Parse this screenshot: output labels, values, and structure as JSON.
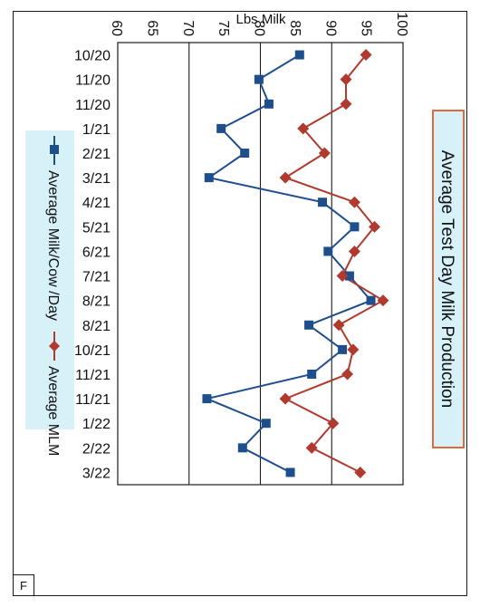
{
  "figure": {
    "panel_letter": "F"
  },
  "chart_data": {
    "type": "line",
    "title": "Average Test Day Milk Production",
    "ylabel": "Lbs Milk",
    "xlabel": "",
    "ylim": [
      60,
      100
    ],
    "y_ticks": [
      "60",
      "65",
      "70",
      "75",
      "80",
      "85",
      "90",
      "95",
      "100"
    ],
    "categories": [
      "10/20",
      "11/20",
      "11/20",
      "1/21",
      "2/21",
      "3/21",
      "4/21",
      "5/21",
      "6/21",
      "7/21",
      "8/21",
      "8/21",
      "10/21",
      "11/21",
      "11/21",
      "1/22",
      "2/22",
      "3/22"
    ],
    "grid": true,
    "legend_position": "bottom",
    "orientation": "rotated 90 degrees clockwise",
    "series": [
      {
        "name": "Average Milk/Cow /Day",
        "color": "#1f4e8c",
        "marker": "square",
        "values": [
          85.5,
          79.8,
          81.2,
          74.5,
          77.8,
          72.8,
          88.7,
          93.2,
          89.5,
          92.5,
          95.5,
          86.8,
          91.5,
          87.2,
          72.5,
          80.8,
          77.5,
          84.2
        ]
      },
      {
        "name": "Average MLM",
        "color": "#b03a2e",
        "marker": "diamond",
        "values": [
          94.8,
          92.0,
          92.0,
          86.0,
          89.0,
          83.5,
          93.2,
          96.0,
          93.2,
          91.5,
          97.2,
          91.0,
          93.0,
          92.2,
          83.5,
          90.2,
          87.2,
          94.0
        ]
      }
    ]
  }
}
